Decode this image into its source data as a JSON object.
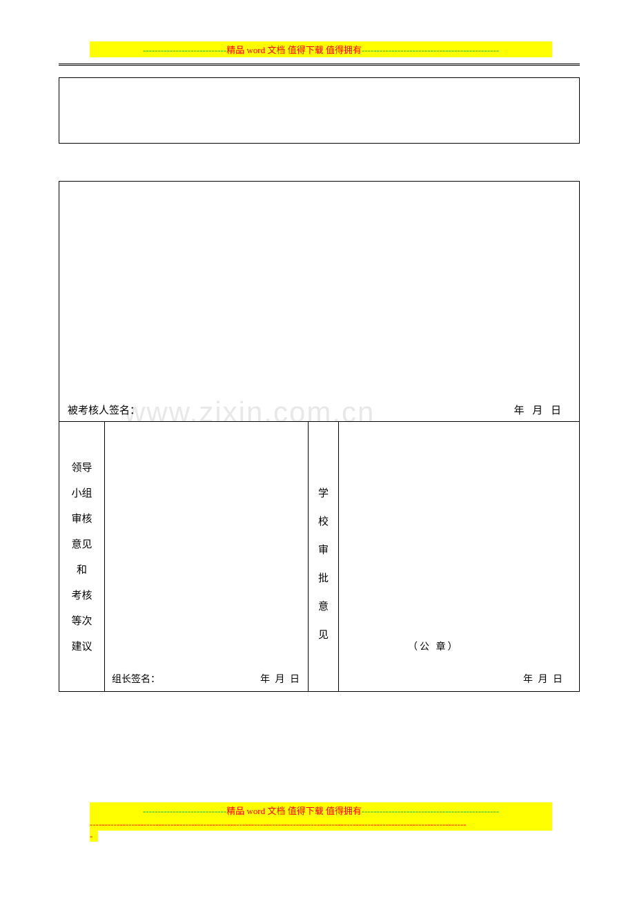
{
  "banner": {
    "dashes_left": "----------------------------",
    "main": "精品 word 文档  值得下载  值得拥有",
    "dashes_right": "----------------------------------------------"
  },
  "watermark": "www.zixin.com.cn",
  "table2": {
    "signature_label": "被考核人签名：",
    "signature_date": "年    月    日",
    "col1_chars": [
      "领导",
      "小组",
      "审核",
      "意见",
      "和",
      "考核",
      "等次",
      "建议"
    ],
    "col2_sig_label": "组长签名：",
    "col2_sig_date": "年  月  日",
    "col3_chars": [
      "学",
      "校",
      "审",
      "批",
      "意",
      "见"
    ],
    "seal": "（公 章）",
    "col4_sig_date": "年  月  日"
  },
  "footer": {
    "dashes_left": "----------------------------",
    "main": "精品 word 文档  值得下载  值得拥有",
    "dashes_right": "----------------------------------------------",
    "line2": "------------------------------------------------------------------------------------------------------------------------------",
    "line3": "-"
  }
}
